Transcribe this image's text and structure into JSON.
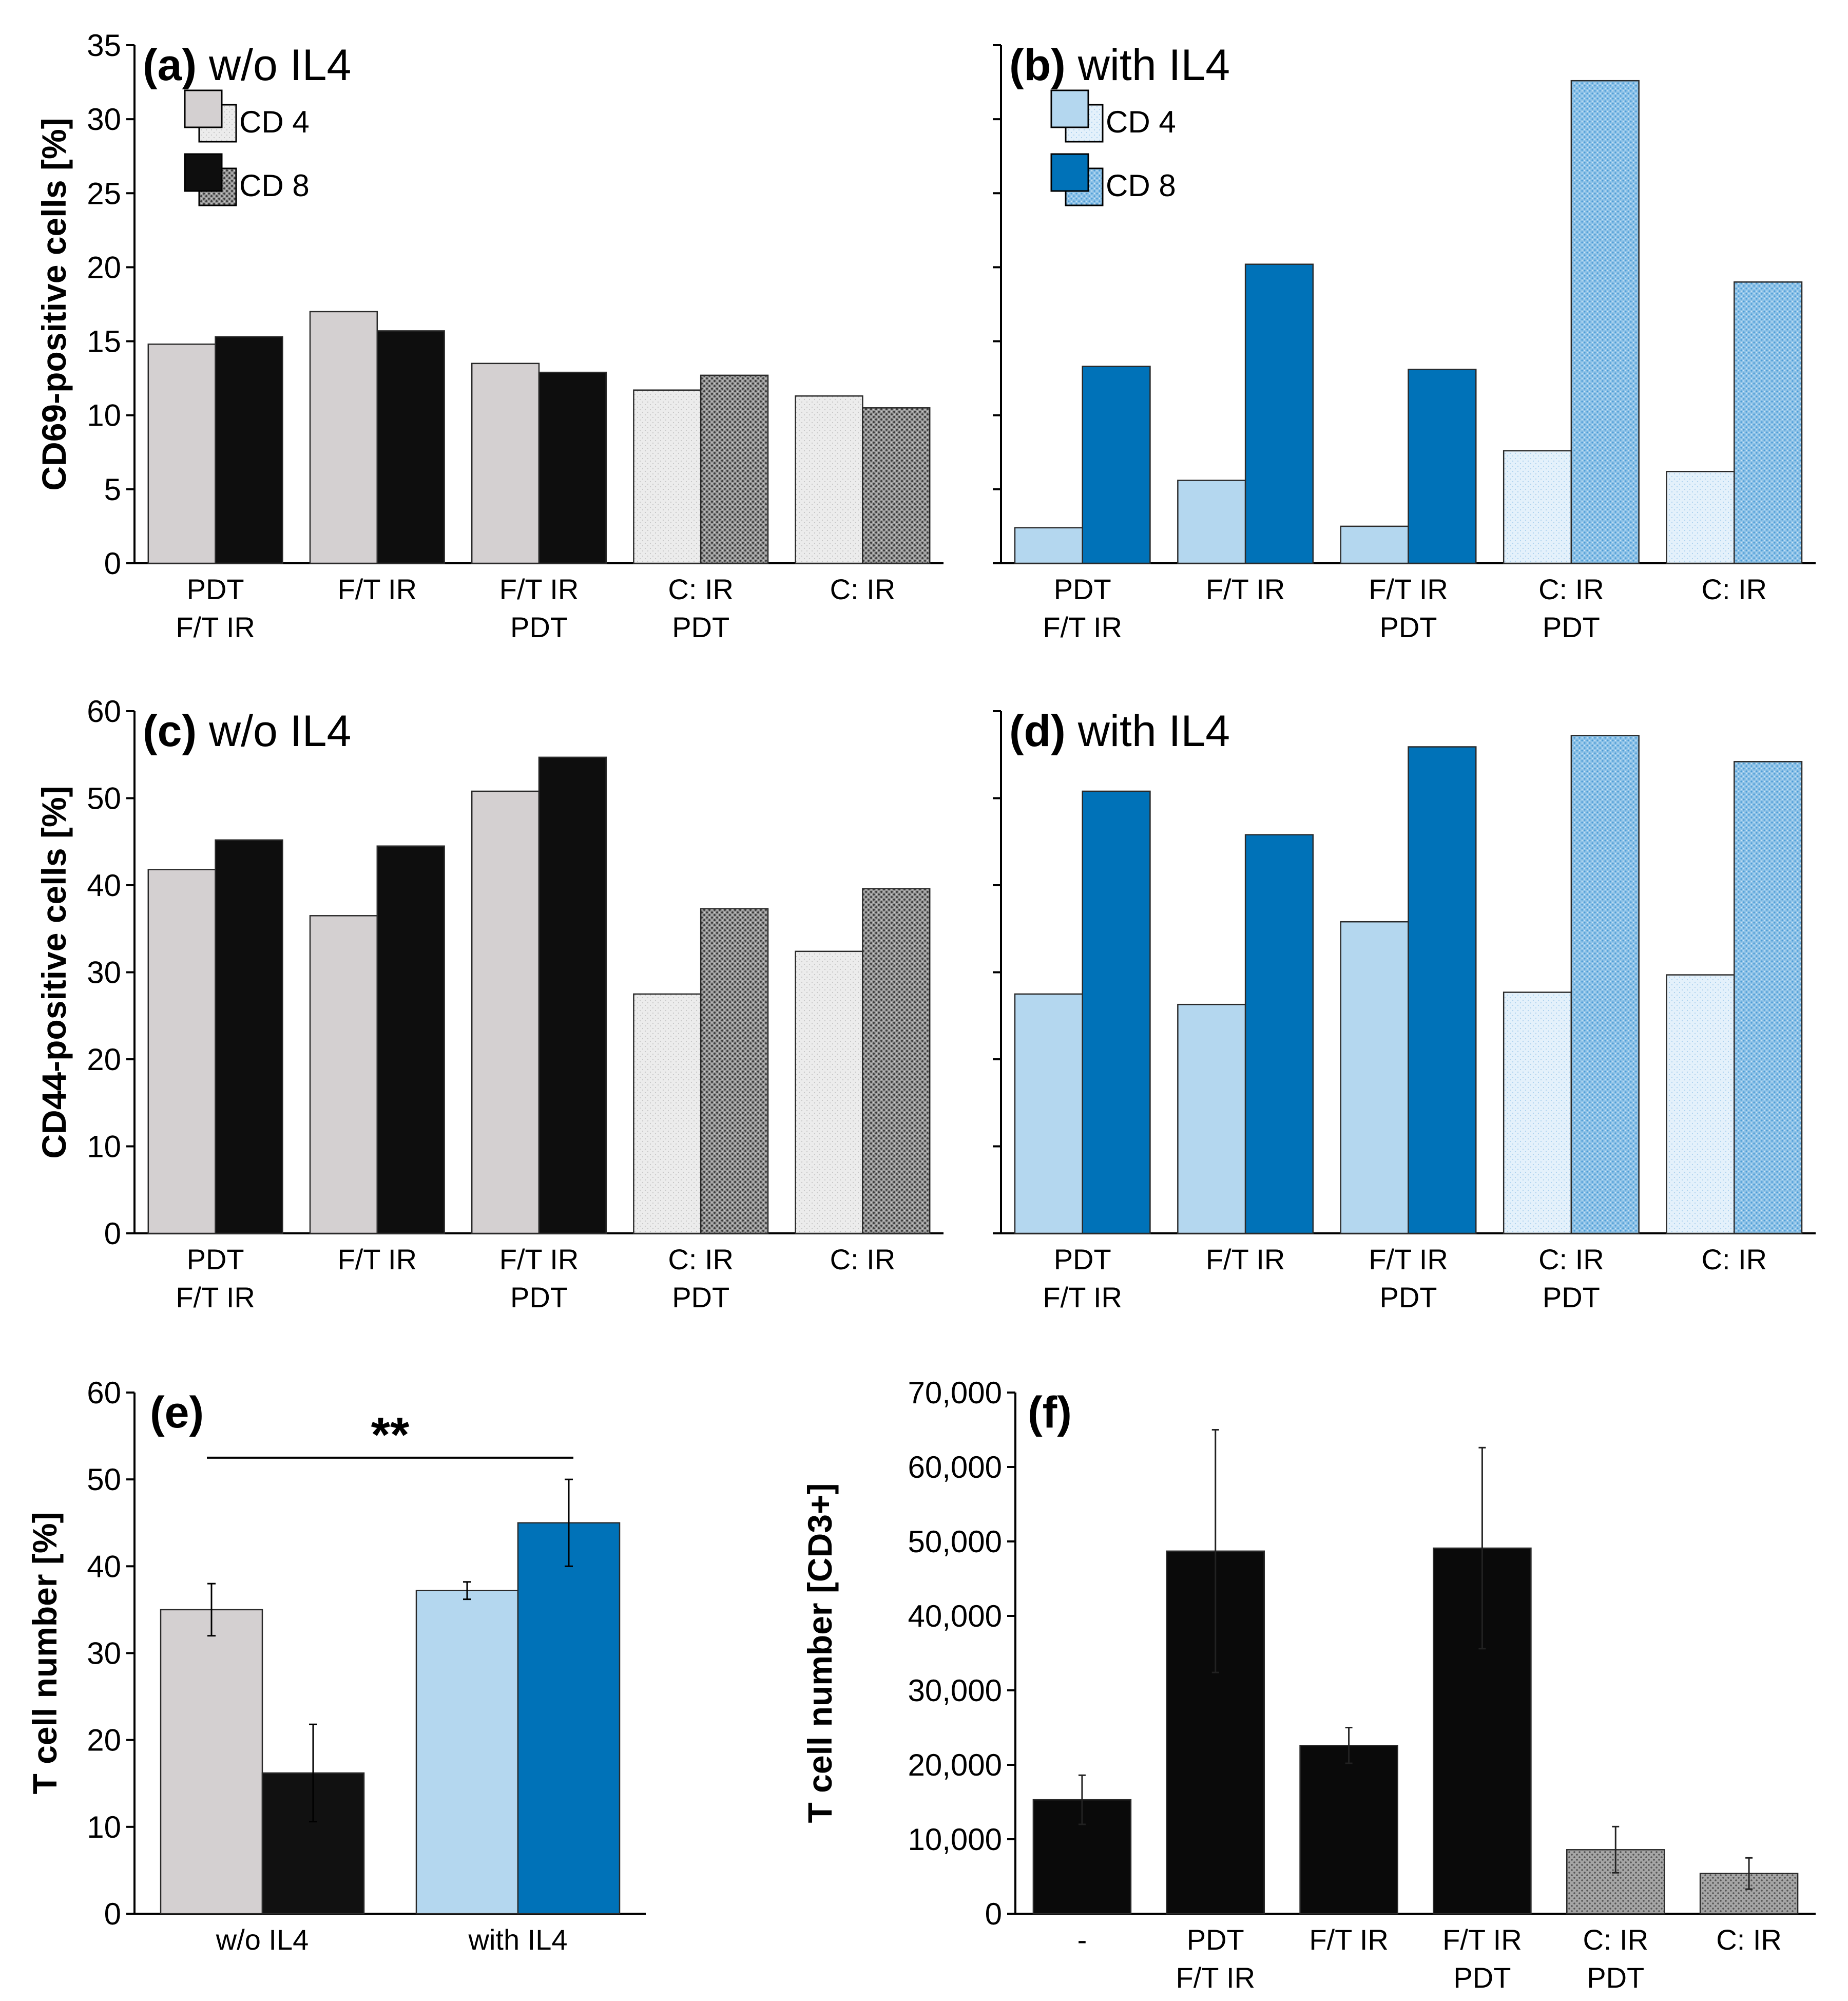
{
  "chart_data": [
    {
      "panel": "a",
      "type": "bar",
      "title_letter": "(a)",
      "title_text": "w/o IL4",
      "ylabel": "CD69-positive cells [%]",
      "ylim": [
        0,
        35
      ],
      "yticks": [
        0,
        5,
        10,
        15,
        20,
        25,
        30,
        35
      ],
      "show_tick_labels": true,
      "categories": [
        [
          "PDT",
          "F/T IR"
        ],
        [
          "F/T IR"
        ],
        [
          "F/T IR",
          "PDT"
        ],
        [
          "C: IR",
          "PDT"
        ],
        [
          "C: IR"
        ]
      ],
      "series": [
        {
          "name": "CD 4",
          "values": [
            14.8,
            17.0,
            13.5,
            11.7,
            11.3
          ]
        },
        {
          "name": "CD 8",
          "values": [
            15.3,
            15.7,
            12.9,
            12.7,
            10.5
          ]
        }
      ],
      "legend": [
        "CD 4",
        "CD 8"
      ],
      "palette": "gray"
    },
    {
      "panel": "b",
      "type": "bar",
      "title_letter": "(b)",
      "title_text": "with IL4",
      "ylabel": "",
      "ylim": [
        0,
        35
      ],
      "yticks": [
        0,
        5,
        10,
        15,
        20,
        25,
        30,
        35
      ],
      "show_tick_labels": false,
      "categories": [
        [
          "PDT",
          "F/T IR"
        ],
        [
          "F/T IR"
        ],
        [
          "F/T IR",
          "PDT"
        ],
        [
          "C: IR",
          "PDT"
        ],
        [
          "C: IR"
        ]
      ],
      "series": [
        {
          "name": "CD 4",
          "values": [
            2.4,
            5.6,
            2.5,
            7.6,
            6.2
          ]
        },
        {
          "name": "CD 8",
          "values": [
            13.3,
            20.2,
            13.1,
            32.6,
            19.0
          ]
        }
      ],
      "legend": [
        "CD 4",
        "CD 8"
      ],
      "palette": "blue"
    },
    {
      "panel": "c",
      "type": "bar",
      "title_letter": "(c)",
      "title_text": "w/o IL4",
      "ylabel": "CD44-positive cells [%]",
      "ylim": [
        0,
        60
      ],
      "yticks": [
        0,
        10,
        20,
        30,
        40,
        50,
        60
      ],
      "show_tick_labels": true,
      "categories": [
        [
          "PDT",
          "F/T IR"
        ],
        [
          "F/T IR"
        ],
        [
          "F/T IR",
          "PDT"
        ],
        [
          "C: IR",
          "PDT"
        ],
        [
          "C: IR"
        ]
      ],
      "series": [
        {
          "name": "CD 4",
          "values": [
            41.8,
            36.5,
            50.8,
            27.5,
            32.4
          ]
        },
        {
          "name": "CD 8",
          "values": [
            45.2,
            44.5,
            54.7,
            37.3,
            39.6
          ]
        }
      ],
      "palette": "gray"
    },
    {
      "panel": "d",
      "type": "bar",
      "title_letter": "(d)",
      "title_text": "with IL4",
      "ylabel": "",
      "ylim": [
        0,
        60
      ],
      "yticks": [
        0,
        10,
        20,
        30,
        40,
        50,
        60
      ],
      "show_tick_labels": false,
      "categories": [
        [
          "PDT",
          "F/T IR"
        ],
        [
          "F/T IR"
        ],
        [
          "F/T IR",
          "PDT"
        ],
        [
          "C: IR",
          "PDT"
        ],
        [
          "C: IR"
        ]
      ],
      "series": [
        {
          "name": "CD 4",
          "values": [
            27.5,
            26.3,
            35.8,
            27.7,
            29.7
          ]
        },
        {
          "name": "CD 8",
          "values": [
            50.8,
            45.8,
            55.9,
            57.2,
            54.2
          ]
        }
      ],
      "palette": "blue"
    },
    {
      "panel": "e",
      "type": "bar",
      "title_letter": "(e)",
      "title_text": "",
      "ylabel": "T cell number [%]",
      "ylim": [
        0,
        60
      ],
      "yticks": [
        0,
        10,
        20,
        30,
        40,
        50,
        60
      ],
      "show_tick_labels": true,
      "categories": [
        "w/o IL4",
        "with IL4"
      ],
      "bars": [
        {
          "group": "w/o IL4",
          "series": "CD 4",
          "value": 35.0,
          "error": 3.0
        },
        {
          "group": "w/o IL4",
          "series": "CD 8",
          "value": 16.2,
          "error": 5.6
        },
        {
          "group": "with IL4",
          "series": "CD 4",
          "value": 37.2,
          "error": 1.0
        },
        {
          "group": "with IL4",
          "series": "CD 8",
          "value": 45.0,
          "error": 5.0
        }
      ],
      "significance": {
        "label": "**",
        "between": [
          "w/o IL4",
          "with IL4"
        ]
      }
    },
    {
      "panel": "f",
      "type": "bar",
      "title_letter": "(f)",
      "title_text": "",
      "ylabel": "T cell number [CD3+]",
      "ylim": [
        0,
        70000
      ],
      "yticks": [
        0,
        10000,
        20000,
        30000,
        40000,
        50000,
        60000,
        70000
      ],
      "ytick_labels": [
        "0",
        "10,000",
        "20,000",
        "30,000",
        "40,000",
        "50,000",
        "60,000",
        "70,000"
      ],
      "show_tick_labels": true,
      "categories": [
        [
          "-"
        ],
        [
          "PDT",
          "F/T IR"
        ],
        [
          "F/T IR"
        ],
        [
          "F/T IR",
          "PDT"
        ],
        [
          "C: IR",
          "PDT"
        ],
        [
          "C: IR"
        ]
      ],
      "values": [
        15300,
        48700,
        22600,
        49100,
        8600,
        5400
      ],
      "errors": [
        3300,
        16300,
        2400,
        13500,
        3100,
        2100
      ],
      "fills": [
        "black",
        "black",
        "black",
        "black",
        "dotted",
        "dotted"
      ]
    }
  ]
}
